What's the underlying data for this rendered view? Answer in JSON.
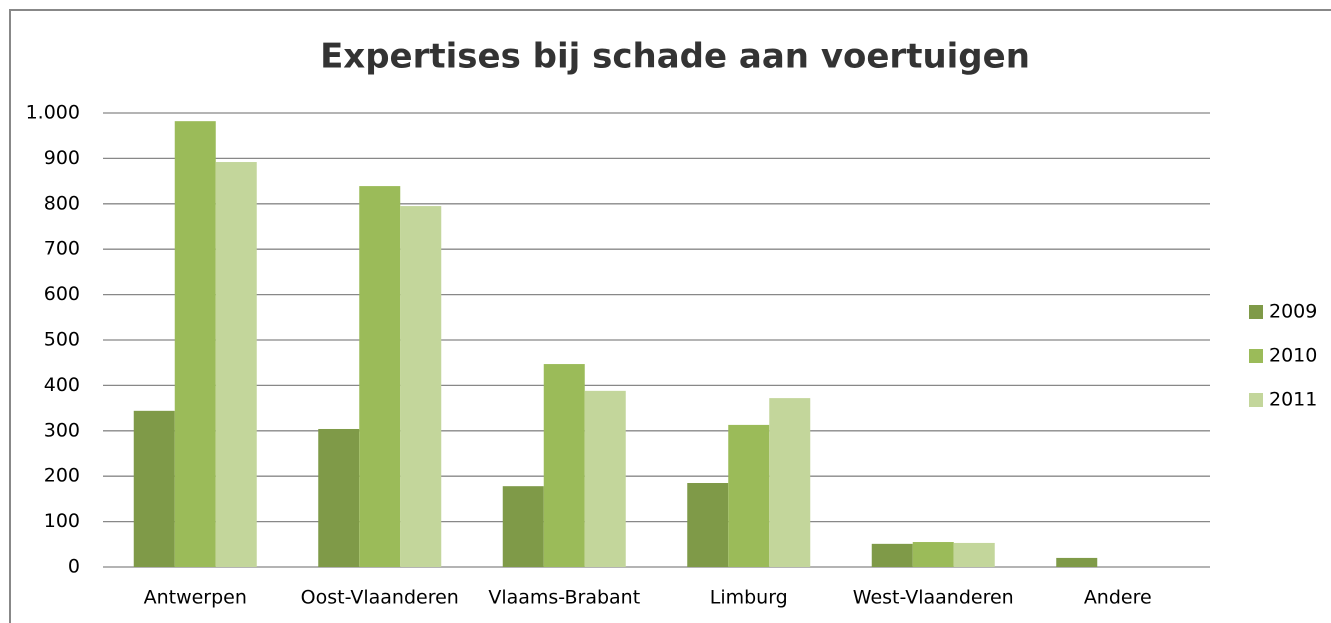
{
  "chart_data": {
    "type": "bar",
    "title": "Expertises bij schade aan voertuigen",
    "categories": [
      "Antwerpen",
      "Oost-Vlaanderen",
      "Vlaams-Brabant",
      "Limburg",
      "West-Vlaanderen",
      "Andere"
    ],
    "series": [
      {
        "name": "2009",
        "color": "#7f9a48",
        "values": [
          344,
          304,
          178,
          185,
          51,
          20
        ]
      },
      {
        "name": "2010",
        "color": "#9bbb59",
        "values": [
          982,
          839,
          447,
          313,
          55,
          0
        ]
      },
      {
        "name": "2011",
        "color": "#c3d69b",
        "values": [
          892,
          795,
          388,
          372,
          53,
          0
        ]
      }
    ],
    "ylim": [
      0,
      1000
    ],
    "yticks": [
      0,
      100,
      200,
      300,
      400,
      500,
      600,
      700,
      800,
      900,
      {
        "value": 1000,
        "label": "1.000"
      }
    ],
    "grid": true,
    "legend": "right"
  }
}
